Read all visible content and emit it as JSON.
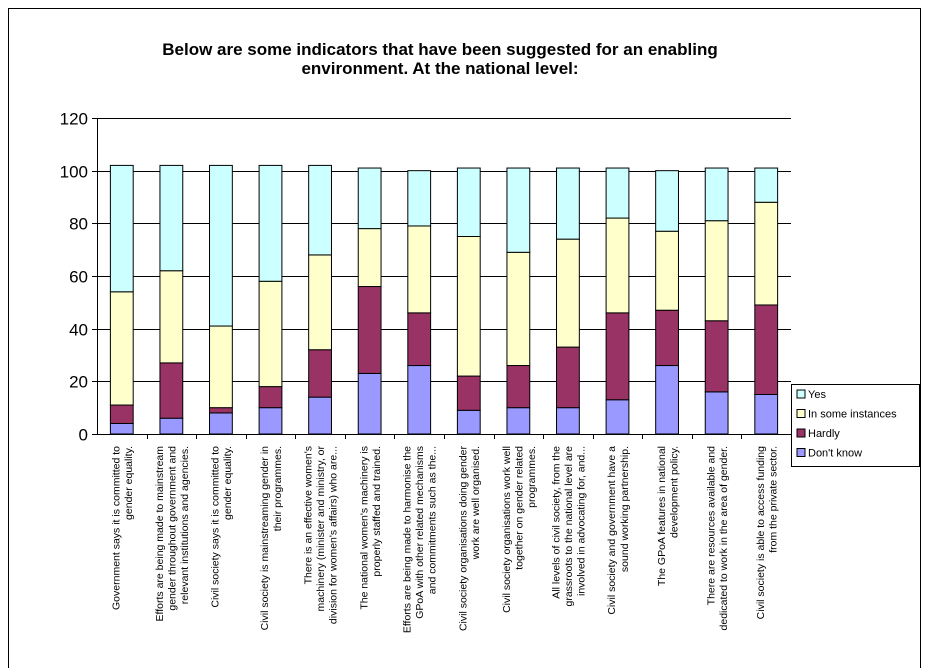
{
  "chart_data": {
    "type": "bar",
    "stacked": true,
    "title": "Below are some indicators that have been suggested for an enabling environment.  At the national level:",
    "title_lines": [
      "Below are some indicators that have been suggested for an enabling",
      "environment.  At the national level:"
    ],
    "xlabel": "",
    "ylabel": "",
    "ylim": [
      0,
      120
    ],
    "yticks": [
      "0",
      "20",
      "40",
      "60",
      "80",
      "100",
      "120"
    ],
    "grid": true,
    "legend_position": "right",
    "categories": [
      "Government says it is committed to gender equality.",
      "Efforts are being made to mainstream gender throughout government and relevant institutions and agencies.",
      "Civil society says it is committed to gender equality.",
      "Civil society is mainstreaming gender in their programmes.",
      "There is an effective women's machinery (minister and ministry, or division for women's affairs) who are...",
      "The national women's machinery is properly staffed and trained.",
      "Efforts are being made to harmonise the GPoA with other related mechanisms and commitments such as the...",
      "Civil society organisations doing gender work are well organised.",
      "Civil society organisations work well together on gender related programmes.",
      "All levels of civil society, from the grassroots to the national level are involved in advocating for, and...",
      "Civil society and government have a sound working partnership.",
      "The GPoA features in national development policy.",
      "There are resources available and dedicated to work in the area of gender.",
      "Civil society is able to access funding from the private sector."
    ],
    "category_lines": [
      [
        "Government says it is committed to",
        "gender equality."
      ],
      [
        "Efforts are being made to mainstream",
        "gender throughout government and",
        "relevant institutions and agencies."
      ],
      [
        "Civil society says it is committed to",
        "gender equality."
      ],
      [
        "Civil society is mainstreaming gender in",
        "their programmes."
      ],
      [
        "There is an effective women's",
        "machinery (minister and ministry, or",
        "division for women's affairs) who are..."
      ],
      [
        "The national women's machinery is",
        "properly staffed and trained."
      ],
      [
        "Efforts are being made to harmonise the",
        "GPoA with other related mechanisms",
        "and commitments such as the..."
      ],
      [
        "Civil society organisations doing gender",
        "work are well organised."
      ],
      [
        "Civil society organisations work well",
        "together on gender related",
        "programmes."
      ],
      [
        "All levels of civil society, from the",
        "grassroots to the national level are",
        "involved in advocating for, and..."
      ],
      [
        "Civil society and government have a",
        "sound working partnership."
      ],
      [
        "The GPoA features in national",
        "development policy."
      ],
      [
        "There are resources available and",
        "dedicated to work in the area of gender."
      ],
      [
        "Civil society is able to access funding",
        "from the private sector."
      ]
    ],
    "series": [
      {
        "name": "Don't know",
        "color": "#9999FF",
        "values": [
          4,
          6,
          8,
          10,
          14,
          23,
          26,
          9,
          10,
          10,
          13,
          26,
          16,
          15
        ]
      },
      {
        "name": "Hardly",
        "color": "#993366",
        "values": [
          7,
          21,
          2,
          8,
          18,
          33,
          20,
          13,
          16,
          23,
          33,
          21,
          27,
          34
        ]
      },
      {
        "name": "In some instances",
        "color": "#FFFFCC",
        "values": [
          43,
          35,
          31,
          40,
          36,
          22,
          33,
          53,
          43,
          41,
          36,
          30,
          38,
          39
        ]
      },
      {
        "name": "Yes",
        "color": "#CCFFFF",
        "values": [
          48,
          40,
          61,
          44,
          34,
          23,
          21,
          26,
          32,
          27,
          19,
          23,
          20,
          13
        ]
      }
    ],
    "legend_order": [
      "Yes",
      "In some instances",
      "Hardly",
      "Don't know"
    ]
  }
}
